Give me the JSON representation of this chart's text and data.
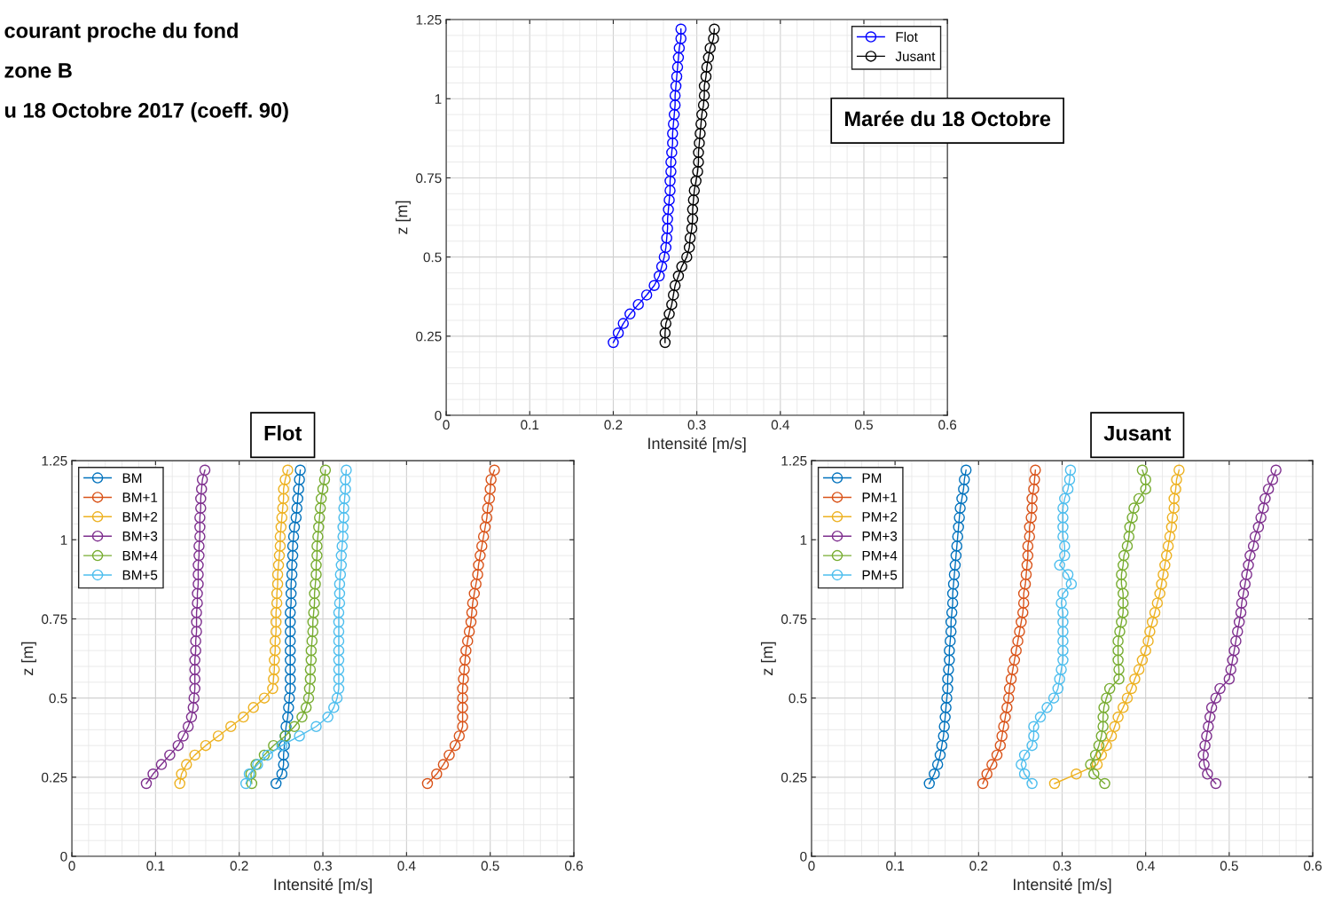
{
  "chart_data": [
    {
      "type": "line",
      "title": "Marée du 18 Octobre",
      "xlabel": "Intensité [m/s]",
      "ylabel": "z [m]",
      "annotations": [
        "courant proche du fond",
        "zone B",
        "u 18 Octobre 2017 (coeff. 90)"
      ],
      "xlim": [
        0,
        0.6
      ],
      "ylim": [
        0,
        1.25
      ],
      "xticks": [
        0,
        0.1,
        0.2,
        0.3,
        0.4,
        0.5,
        0.6
      ],
      "yticks": [
        0,
        0.25,
        0.5,
        0.75,
        1,
        1.25
      ],
      "grid": true,
      "legend": "top right",
      "marker": "circle",
      "line_style": "solid",
      "series": [
        {
          "name": "Flot",
          "color": "#0000ff",
          "x": [
            0.2,
            0.206,
            0.212,
            0.22,
            0.23,
            0.24,
            0.249,
            0.255,
            0.258,
            0.261,
            0.263,
            0.264,
            0.265,
            0.265,
            0.266,
            0.267,
            0.268,
            0.268,
            0.269,
            0.269,
            0.27,
            0.271,
            0.271,
            0.272,
            0.273,
            0.274,
            0.274,
            0.275,
            0.276,
            0.277,
            0.278,
            0.279,
            0.281,
            0.281
          ],
          "values": [
            0.23,
            0.26,
            0.29,
            0.32,
            0.35,
            0.38,
            0.41,
            0.44,
            0.47,
            0.5,
            0.53,
            0.56,
            0.59,
            0.62,
            0.65,
            0.68,
            0.71,
            0.74,
            0.77,
            0.8,
            0.83,
            0.86,
            0.89,
            0.92,
            0.95,
            0.98,
            1.01,
            1.04,
            1.07,
            1.1,
            1.13,
            1.16,
            1.19,
            1.22
          ]
        },
        {
          "name": "Jusant",
          "color": "#000000",
          "x": [
            0.262,
            0.262,
            0.263,
            0.267,
            0.27,
            0.272,
            0.274,
            0.278,
            0.282,
            0.288,
            0.291,
            0.292,
            0.294,
            0.295,
            0.295,
            0.296,
            0.297,
            0.299,
            0.301,
            0.302,
            0.302,
            0.303,
            0.304,
            0.305,
            0.306,
            0.308,
            0.309,
            0.309,
            0.311,
            0.312,
            0.314,
            0.316,
            0.32,
            0.321
          ],
          "values": [
            0.23,
            0.26,
            0.29,
            0.32,
            0.35,
            0.38,
            0.41,
            0.44,
            0.47,
            0.5,
            0.53,
            0.56,
            0.59,
            0.62,
            0.65,
            0.68,
            0.71,
            0.74,
            0.77,
            0.8,
            0.83,
            0.86,
            0.89,
            0.92,
            0.95,
            0.98,
            1.01,
            1.04,
            1.07,
            1.1,
            1.13,
            1.16,
            1.19,
            1.22
          ]
        }
      ]
    },
    {
      "type": "line",
      "title": "Flot",
      "xlabel": "Intensité [m/s]",
      "ylabel": "z [m]",
      "xlim": [
        0,
        0.6
      ],
      "ylim": [
        0,
        1.25
      ],
      "xticks": [
        0,
        0.1,
        0.2,
        0.3,
        0.4,
        0.5,
        0.6
      ],
      "yticks": [
        0,
        0.25,
        0.5,
        0.75,
        1,
        1.25
      ],
      "grid": true,
      "legend": "top left",
      "marker": "circle",
      "line_style": "solid",
      "series": [
        {
          "name": "BM",
          "color": "#0072bd",
          "x": [
            0.244,
            0.251,
            0.253,
            0.253,
            0.254,
            0.255,
            0.256,
            0.258,
            0.259,
            0.26,
            0.261,
            0.261,
            0.261,
            0.261,
            0.261,
            0.261,
            0.261,
            0.261,
            0.261,
            0.262,
            0.262,
            0.262,
            0.263,
            0.263,
            0.264,
            0.264,
            0.265,
            0.266,
            0.268,
            0.269,
            0.27,
            0.271,
            0.272,
            0.273
          ],
          "values": [
            0.23,
            0.26,
            0.29,
            0.32,
            0.35,
            0.38,
            0.41,
            0.44,
            0.47,
            0.5,
            0.53,
            0.56,
            0.59,
            0.62,
            0.65,
            0.68,
            0.71,
            0.74,
            0.77,
            0.8,
            0.83,
            0.86,
            0.89,
            0.92,
            0.95,
            0.98,
            1.01,
            1.04,
            1.07,
            1.1,
            1.13,
            1.16,
            1.19,
            1.22
          ]
        },
        {
          "name": "BM+1",
          "color": "#d95319",
          "x": [
            0.425,
            0.436,
            0.444,
            0.451,
            0.458,
            0.463,
            0.467,
            0.467,
            0.467,
            0.467,
            0.467,
            0.468,
            0.469,
            0.47,
            0.471,
            0.473,
            0.475,
            0.477,
            0.478,
            0.479,
            0.481,
            0.483,
            0.485,
            0.486,
            0.488,
            0.49,
            0.492,
            0.494,
            0.496,
            0.497,
            0.499,
            0.5,
            0.501,
            0.505
          ],
          "values": [
            0.23,
            0.26,
            0.29,
            0.32,
            0.35,
            0.38,
            0.41,
            0.44,
            0.47,
            0.5,
            0.53,
            0.56,
            0.59,
            0.62,
            0.65,
            0.68,
            0.71,
            0.74,
            0.77,
            0.8,
            0.83,
            0.86,
            0.89,
            0.92,
            0.95,
            0.98,
            1.01,
            1.04,
            1.07,
            1.1,
            1.13,
            1.16,
            1.19,
            1.22
          ]
        },
        {
          "name": "BM+2",
          "color": "#edb120",
          "x": [
            0.129,
            0.131,
            0.137,
            0.147,
            0.16,
            0.175,
            0.19,
            0.205,
            0.217,
            0.23,
            0.24,
            0.241,
            0.242,
            0.242,
            0.243,
            0.243,
            0.244,
            0.244,
            0.244,
            0.245,
            0.245,
            0.246,
            0.246,
            0.247,
            0.248,
            0.249,
            0.249,
            0.25,
            0.251,
            0.252,
            0.253,
            0.253,
            0.255,
            0.258
          ],
          "values": [
            0.23,
            0.26,
            0.29,
            0.32,
            0.35,
            0.38,
            0.41,
            0.44,
            0.47,
            0.5,
            0.53,
            0.56,
            0.59,
            0.62,
            0.65,
            0.68,
            0.71,
            0.74,
            0.77,
            0.8,
            0.83,
            0.86,
            0.89,
            0.92,
            0.95,
            0.98,
            1.01,
            1.04,
            1.07,
            1.1,
            1.13,
            1.16,
            1.19,
            1.22
          ]
        },
        {
          "name": "BM+3",
          "color": "#7e2f8e",
          "x": [
            0.089,
            0.097,
            0.107,
            0.117,
            0.127,
            0.133,
            0.139,
            0.143,
            0.145,
            0.146,
            0.147,
            0.147,
            0.147,
            0.147,
            0.148,
            0.148,
            0.149,
            0.149,
            0.149,
            0.15,
            0.15,
            0.151,
            0.151,
            0.151,
            0.152,
            0.152,
            0.153,
            0.153,
            0.153,
            0.154,
            0.154,
            0.155,
            0.156,
            0.159
          ],
          "values": [
            0.23,
            0.26,
            0.29,
            0.32,
            0.35,
            0.38,
            0.41,
            0.44,
            0.47,
            0.5,
            0.53,
            0.56,
            0.59,
            0.62,
            0.65,
            0.68,
            0.71,
            0.74,
            0.77,
            0.8,
            0.83,
            0.86,
            0.89,
            0.92,
            0.95,
            0.98,
            1.01,
            1.04,
            1.07,
            1.1,
            1.13,
            1.16,
            1.19,
            1.22
          ]
        },
        {
          "name": "BM+4",
          "color": "#77ac30",
          "x": [
            0.215,
            0.214,
            0.22,
            0.23,
            0.241,
            0.255,
            0.266,
            0.275,
            0.28,
            0.283,
            0.284,
            0.285,
            0.285,
            0.286,
            0.286,
            0.287,
            0.288,
            0.288,
            0.289,
            0.29,
            0.29,
            0.291,
            0.292,
            0.292,
            0.293,
            0.293,
            0.294,
            0.295,
            0.296,
            0.297,
            0.298,
            0.3,
            0.302,
            0.303
          ],
          "values": [
            0.23,
            0.26,
            0.29,
            0.32,
            0.35,
            0.38,
            0.41,
            0.44,
            0.47,
            0.5,
            0.53,
            0.56,
            0.59,
            0.62,
            0.65,
            0.68,
            0.71,
            0.74,
            0.77,
            0.8,
            0.83,
            0.86,
            0.89,
            0.92,
            0.95,
            0.98,
            1.01,
            1.04,
            1.07,
            1.1,
            1.13,
            1.16,
            1.19,
            1.22
          ]
        },
        {
          "name": "BM+5",
          "color": "#4dbeee",
          "x": [
            0.208,
            0.212,
            0.222,
            0.234,
            0.251,
            0.272,
            0.292,
            0.306,
            0.313,
            0.317,
            0.319,
            0.319,
            0.319,
            0.319,
            0.319,
            0.319,
            0.319,
            0.319,
            0.319,
            0.32,
            0.32,
            0.32,
            0.321,
            0.322,
            0.322,
            0.323,
            0.324,
            0.324,
            0.325,
            0.325,
            0.326,
            0.327,
            0.327,
            0.328
          ],
          "values": [
            0.23,
            0.26,
            0.29,
            0.32,
            0.35,
            0.38,
            0.41,
            0.44,
            0.47,
            0.5,
            0.53,
            0.56,
            0.59,
            0.62,
            0.65,
            0.68,
            0.71,
            0.74,
            0.77,
            0.8,
            0.83,
            0.86,
            0.89,
            0.92,
            0.95,
            0.98,
            1.01,
            1.04,
            1.07,
            1.1,
            1.13,
            1.16,
            1.19,
            1.22
          ]
        }
      ]
    },
    {
      "type": "line",
      "title": "Jusant",
      "xlabel": "Intensité [m/s]",
      "ylabel": "z [m]",
      "xlim": [
        0,
        0.6
      ],
      "ylim": [
        0,
        1.25
      ],
      "xticks": [
        0,
        0.1,
        0.2,
        0.3,
        0.4,
        0.5,
        0.6
      ],
      "yticks": [
        0,
        0.25,
        0.5,
        0.75,
        1,
        1.25
      ],
      "grid": true,
      "legend": "top left",
      "marker": "circle",
      "line_style": "solid",
      "series": [
        {
          "name": "PM",
          "color": "#0072bd",
          "x": [
            0.141,
            0.147,
            0.151,
            0.154,
            0.156,
            0.158,
            0.159,
            0.16,
            0.161,
            0.162,
            0.163,
            0.163,
            0.164,
            0.165,
            0.165,
            0.166,
            0.167,
            0.167,
            0.168,
            0.169,
            0.169,
            0.17,
            0.171,
            0.172,
            0.173,
            0.174,
            0.175,
            0.176,
            0.177,
            0.178,
            0.18,
            0.182,
            0.183,
            0.185
          ],
          "values": [
            0.23,
            0.26,
            0.29,
            0.32,
            0.35,
            0.38,
            0.41,
            0.44,
            0.47,
            0.5,
            0.53,
            0.56,
            0.59,
            0.62,
            0.65,
            0.68,
            0.71,
            0.74,
            0.77,
            0.8,
            0.83,
            0.86,
            0.89,
            0.92,
            0.95,
            0.98,
            1.01,
            1.04,
            1.07,
            1.1,
            1.13,
            1.16,
            1.19,
            1.22
          ]
        },
        {
          "name": "PM+1",
          "color": "#d95319",
          "x": [
            0.205,
            0.21,
            0.216,
            0.222,
            0.226,
            0.228,
            0.23,
            0.232,
            0.234,
            0.236,
            0.237,
            0.239,
            0.241,
            0.243,
            0.245,
            0.247,
            0.249,
            0.251,
            0.253,
            0.254,
            0.254,
            0.256,
            0.257,
            0.258,
            0.259,
            0.259,
            0.261,
            0.261,
            0.263,
            0.264,
            0.264,
            0.266,
            0.267,
            0.268
          ],
          "values": [
            0.23,
            0.26,
            0.29,
            0.32,
            0.35,
            0.38,
            0.41,
            0.44,
            0.47,
            0.5,
            0.53,
            0.56,
            0.59,
            0.62,
            0.65,
            0.68,
            0.71,
            0.74,
            0.77,
            0.8,
            0.83,
            0.86,
            0.89,
            0.92,
            0.95,
            0.98,
            1.01,
            1.04,
            1.07,
            1.1,
            1.13,
            1.16,
            1.19,
            1.22
          ]
        },
        {
          "name": "PM+2",
          "color": "#edb120",
          "x": [
            0.291,
            0.317,
            0.342,
            0.347,
            0.353,
            0.359,
            0.363,
            0.367,
            0.373,
            0.378,
            0.383,
            0.387,
            0.392,
            0.396,
            0.4,
            0.403,
            0.405,
            0.408,
            0.411,
            0.414,
            0.417,
            0.419,
            0.421,
            0.423,
            0.425,
            0.427,
            0.429,
            0.431,
            0.432,
            0.434,
            0.434,
            0.436,
            0.437,
            0.44
          ],
          "values": [
            0.23,
            0.26,
            0.29,
            0.32,
            0.35,
            0.38,
            0.41,
            0.44,
            0.47,
            0.5,
            0.53,
            0.56,
            0.59,
            0.62,
            0.65,
            0.68,
            0.71,
            0.74,
            0.77,
            0.8,
            0.83,
            0.86,
            0.89,
            0.92,
            0.95,
            0.98,
            1.01,
            1.04,
            1.07,
            1.1,
            1.13,
            1.16,
            1.19,
            1.22
          ]
        },
        {
          "name": "PM+3",
          "color": "#7e2f8e",
          "x": [
            0.484,
            0.474,
            0.47,
            0.469,
            0.471,
            0.473,
            0.475,
            0.477,
            0.479,
            0.484,
            0.489,
            0.5,
            0.502,
            0.504,
            0.506,
            0.508,
            0.51,
            0.512,
            0.514,
            0.515,
            0.517,
            0.519,
            0.521,
            0.523,
            0.525,
            0.529,
            0.531,
            0.535,
            0.538,
            0.541,
            0.543,
            0.547,
            0.552,
            0.556
          ],
          "values": [
            0.23,
            0.26,
            0.29,
            0.32,
            0.35,
            0.38,
            0.41,
            0.44,
            0.47,
            0.5,
            0.53,
            0.56,
            0.59,
            0.62,
            0.65,
            0.68,
            0.71,
            0.74,
            0.77,
            0.8,
            0.83,
            0.86,
            0.89,
            0.92,
            0.95,
            0.98,
            1.01,
            1.04,
            1.07,
            1.1,
            1.13,
            1.16,
            1.19,
            1.22
          ]
        },
        {
          "name": "PM+4",
          "color": "#77ac30",
          "x": [
            0.351,
            0.338,
            0.334,
            0.34,
            0.344,
            0.347,
            0.349,
            0.349,
            0.35,
            0.353,
            0.357,
            0.368,
            0.368,
            0.367,
            0.367,
            0.367,
            0.369,
            0.371,
            0.373,
            0.373,
            0.373,
            0.371,
            0.371,
            0.373,
            0.374,
            0.378,
            0.38,
            0.381,
            0.384,
            0.386,
            0.392,
            0.4,
            0.4,
            0.396
          ],
          "values": [
            0.23,
            0.26,
            0.29,
            0.32,
            0.35,
            0.38,
            0.41,
            0.44,
            0.47,
            0.5,
            0.53,
            0.56,
            0.59,
            0.62,
            0.65,
            0.68,
            0.71,
            0.74,
            0.77,
            0.8,
            0.83,
            0.86,
            0.89,
            0.92,
            0.95,
            0.98,
            1.01,
            1.04,
            1.07,
            1.1,
            1.13,
            1.16,
            1.19,
            1.22
          ]
        },
        {
          "name": "PM+5",
          "color": "#4dbeee",
          "x": [
            0.264,
            0.255,
            0.251,
            0.255,
            0.264,
            0.266,
            0.266,
            0.274,
            0.282,
            0.29,
            0.295,
            0.297,
            0.299,
            0.301,
            0.301,
            0.301,
            0.301,
            0.301,
            0.301,
            0.299,
            0.301,
            0.311,
            0.307,
            0.297,
            0.303,
            0.303,
            0.301,
            0.301,
            0.301,
            0.301,
            0.303,
            0.307,
            0.309,
            0.31
          ],
          "values": [
            0.23,
            0.26,
            0.29,
            0.32,
            0.35,
            0.38,
            0.41,
            0.44,
            0.47,
            0.5,
            0.53,
            0.56,
            0.59,
            0.62,
            0.65,
            0.68,
            0.71,
            0.74,
            0.77,
            0.8,
            0.83,
            0.86,
            0.89,
            0.92,
            0.95,
            0.98,
            1.01,
            1.04,
            1.07,
            1.1,
            1.13,
            1.16,
            1.19,
            1.22
          ]
        }
      ]
    }
  ]
}
